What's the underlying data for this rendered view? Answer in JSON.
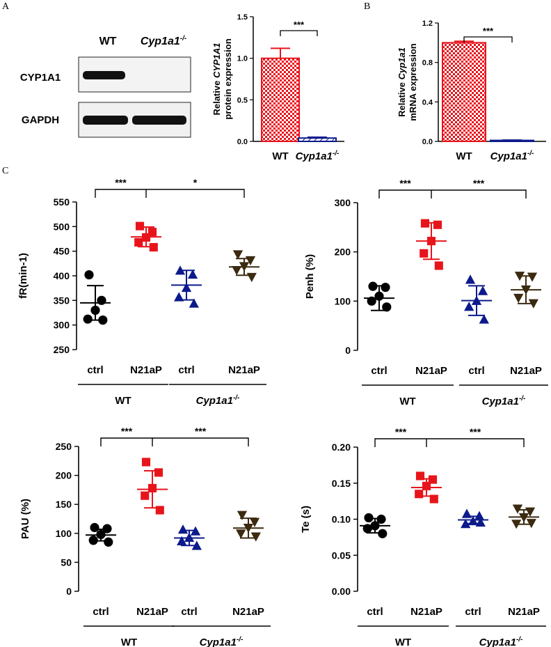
{
  "colors": {
    "wt_ctrl": "#000000",
    "wt_treat": "#e8141b",
    "ko_ctrl": "#0c1a8c",
    "ko_treat": "#3b2a10",
    "bar_wt": "#e8141b",
    "bar_ko": "#0c1a8c"
  },
  "panel_labels": {
    "a": "A",
    "b": "B",
    "c": "C"
  },
  "blot": {
    "wt_label": "WT",
    "ko_label": "Cyp1a1",
    "ko_sup": "-/-",
    "rows": [
      {
        "label": "CYP1A1",
        "wt_band": true,
        "ko_band": false
      },
      {
        "label": "GAPDH",
        "wt_band": true,
        "ko_band": true
      }
    ]
  },
  "chart_data": [
    {
      "id": "protein",
      "type": "bar",
      "ylabel_line1": "Relative",
      "ylabel_gene": "CYP1A1",
      "ylabel_line2": "protein expression",
      "ylim": [
        0,
        1.5
      ],
      "yticks": [
        "0.0",
        "0.5",
        "1.0",
        "1.5"
      ],
      "categories": [
        "WT",
        "Cyp1a1"
      ],
      "cat_sups": [
        "",
        "-/-"
      ],
      "values": [
        1.0,
        0.04
      ],
      "errors": [
        0.12,
        0.01
      ],
      "significance": "***"
    },
    {
      "id": "mrna",
      "type": "bar",
      "ylabel_line1": "Relative",
      "ylabel_gene": "Cyp1a1",
      "ylabel_line2": "mRNA expression",
      "ylim": [
        0,
        1.2
      ],
      "yticks": [
        "0.0",
        "0.4",
        "0.8",
        "1.2"
      ],
      "categories": [
        "WT",
        "Cyp1a1"
      ],
      "cat_sups": [
        "",
        "-/-"
      ],
      "values": [
        1.0,
        0.01
      ],
      "errors": [
        0.015,
        0.003
      ],
      "significance": "***"
    },
    {
      "id": "fr",
      "type": "scatter",
      "ylabel": "fR(min-1)",
      "ylim": [
        250,
        550
      ],
      "yticks": [
        "250",
        "300",
        "350",
        "400",
        "450",
        "500",
        "550"
      ],
      "groups": [
        "ctrl",
        "N21aP",
        "ctrl",
        "N21aP"
      ],
      "genotypes": [
        "WT",
        "Cyp1a1"
      ],
      "genotype_sup": "-/-",
      "series": [
        {
          "name": "WT ctrl",
          "marker": "circle",
          "points": [
            402,
            350,
            330,
            312,
            310
          ],
          "mean": 345,
          "sd": 35
        },
        {
          "name": "WT N21aP",
          "marker": "square",
          "points": [
            501,
            489,
            478,
            468,
            458
          ],
          "mean": 479,
          "sd": 20
        },
        {
          "name": "Cyp1a1-/- ctrl",
          "marker": "triangle-up",
          "points": [
            410,
            402,
            375,
            356,
            343
          ],
          "mean": 381,
          "sd": 30
        },
        {
          "name": "Cyp1a1-/- N21aP",
          "marker": "triangle-down",
          "points": [
            444,
            432,
            420,
            412,
            398
          ],
          "mean": 418,
          "sd": 17
        }
      ],
      "comparisons": [
        "***",
        "*"
      ]
    },
    {
      "id": "penh",
      "type": "scatter",
      "ylabel": "Penh (%)",
      "ylim": [
        0,
        300
      ],
      "yticks": [
        "0",
        "100",
        "200",
        "300"
      ],
      "groups": [
        "ctrl",
        "N21aP",
        "ctrl",
        "N21aP"
      ],
      "genotypes": [
        "WT",
        "Cyp1a1"
      ],
      "genotype_sup": "-/-",
      "series": [
        {
          "name": "WT ctrl",
          "marker": "circle",
          "points": [
            130,
            128,
            110,
            100,
            88
          ],
          "mean": 106,
          "sd": 25
        },
        {
          "name": "WT N21aP",
          "marker": "square",
          "points": [
            258,
            255,
            222,
            197,
            172
          ],
          "mean": 222,
          "sd": 37
        },
        {
          "name": "Cyp1a1-/- ctrl",
          "marker": "triangle-up",
          "points": [
            143,
            120,
            100,
            88,
            62
          ],
          "mean": 101,
          "sd": 30
        },
        {
          "name": "Cyp1a1-/- N21aP",
          "marker": "triangle-down",
          "points": [
            152,
            150,
            124,
            107,
            96
          ],
          "mean": 123,
          "sd": 28
        }
      ],
      "comparisons": [
        "***",
        "***"
      ]
    },
    {
      "id": "pau",
      "type": "scatter",
      "ylabel": "PAU (%)",
      "ylim": [
        0,
        250
      ],
      "yticks": [
        "0",
        "50",
        "100",
        "150",
        "200",
        "250"
      ],
      "groups": [
        "ctrl",
        "N21aP",
        "ctrl",
        "N21aP"
      ],
      "genotypes": [
        "WT",
        "Cyp1a1"
      ],
      "genotype_sup": "-/-",
      "series": [
        {
          "name": "WT ctrl",
          "marker": "circle",
          "points": [
            110,
            108,
            98,
            88,
            85
          ],
          "mean": 97,
          "sd": 10
        },
        {
          "name": "WT N21aP",
          "marker": "square",
          "points": [
            223,
            205,
            178,
            165,
            140
          ],
          "mean": 176,
          "sd": 32
        },
        {
          "name": "Cyp1a1-/- ctrl",
          "marker": "triangle-up",
          "points": [
            106,
            103,
            92,
            86,
            78
          ],
          "mean": 92,
          "sd": 13
        },
        {
          "name": "Cyp1a1-/- N21aP",
          "marker": "triangle-down",
          "points": [
            132,
            120,
            110,
            100,
            95
          ],
          "mean": 109,
          "sd": 17
        }
      ],
      "comparisons": [
        "***",
        "***"
      ]
    },
    {
      "id": "te",
      "type": "scatter",
      "ylabel": "Te (s)",
      "ylim": [
        0,
        0.2
      ],
      "yticks": [
        "0.00",
        "0.05",
        "0.10",
        "0.15",
        "0.20"
      ],
      "groups": [
        "ctrl",
        "N21aP",
        "ctrl",
        "N21aP"
      ],
      "genotypes": [
        "WT",
        "Cyp1a1"
      ],
      "genotype_sup": "-/-",
      "series": [
        {
          "name": "WT ctrl",
          "marker": "circle",
          "points": [
            0.102,
            0.1,
            0.091,
            0.087,
            0.08
          ],
          "mean": 0.091,
          "sd": 0.01
        },
        {
          "name": "WT N21aP",
          "marker": "square",
          "points": [
            0.16,
            0.155,
            0.146,
            0.135,
            0.128
          ],
          "mean": 0.144,
          "sd": 0.012
        },
        {
          "name": "Cyp1a1-/- ctrl",
          "marker": "triangle-up",
          "points": [
            0.107,
            0.104,
            0.097,
            0.093,
            0.095
          ],
          "mean": 0.099,
          "sd": 0.005
        },
        {
          "name": "Cyp1a1-/- N21aP",
          "marker": "triangle-down",
          "points": [
            0.115,
            0.111,
            0.103,
            0.094,
            0.095
          ],
          "mean": 0.103,
          "sd": 0.01
        }
      ],
      "comparisons": [
        "***",
        "***"
      ]
    }
  ]
}
